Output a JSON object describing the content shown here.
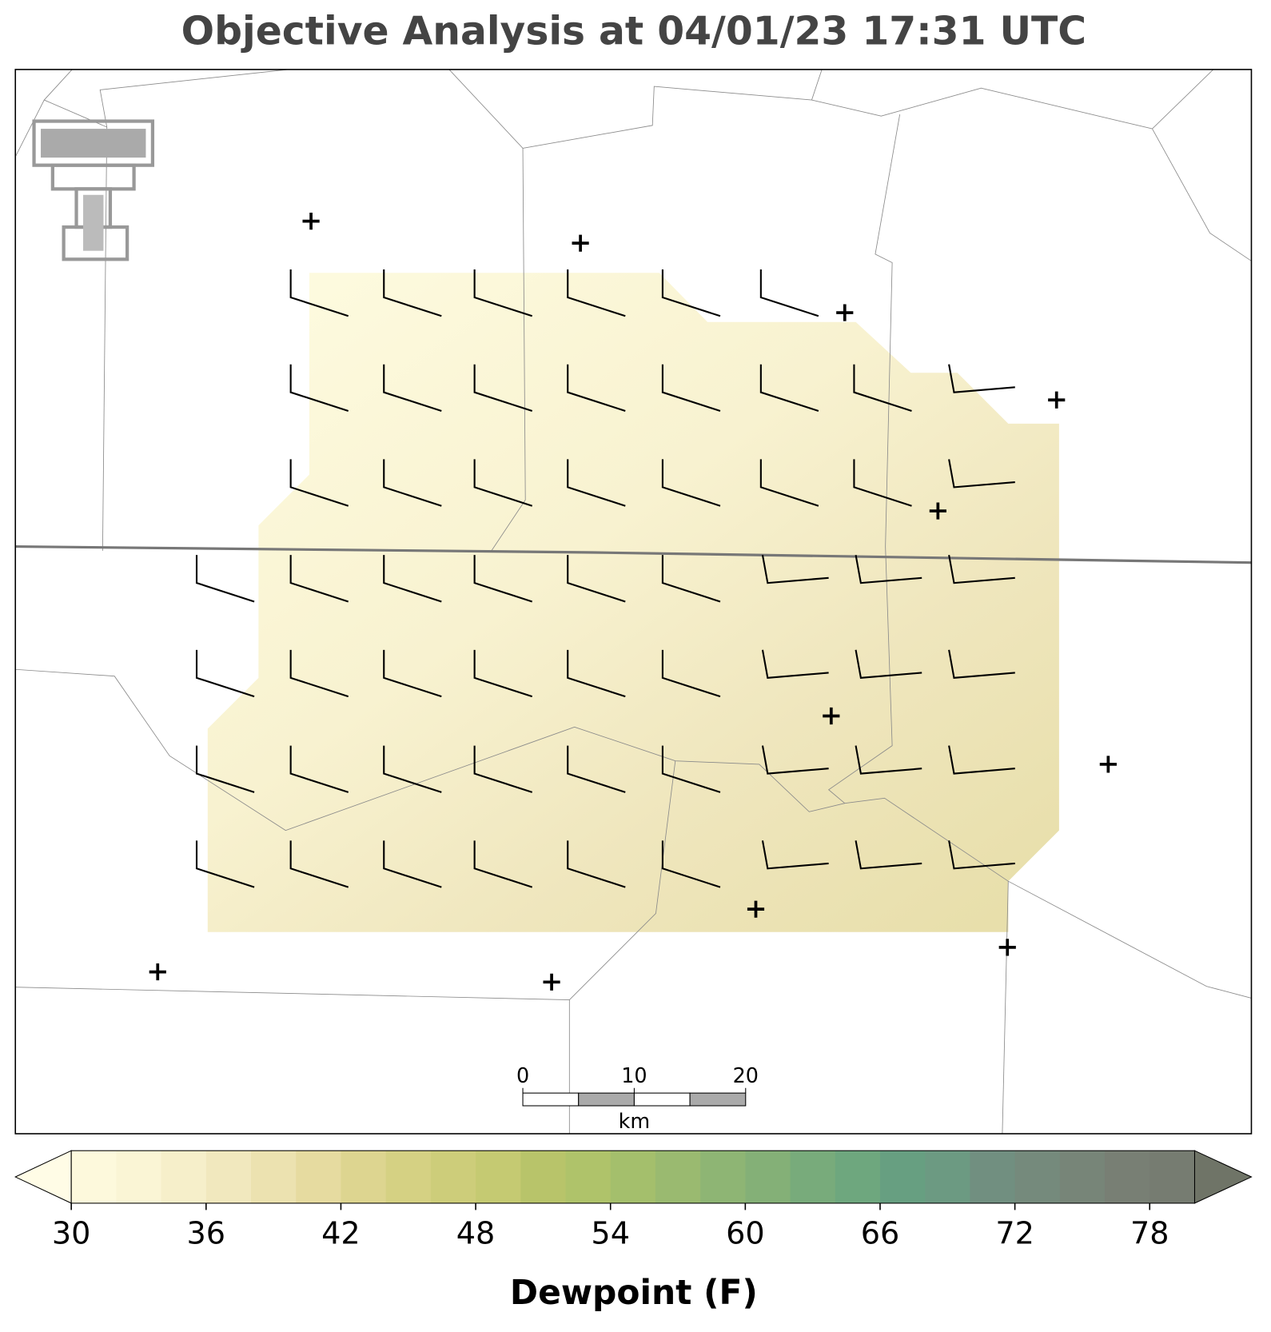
{
  "title": "Objective Analysis at 04/01/23 17:31 UTC",
  "colorbar": {
    "label": "Dewpoint (F)",
    "lim": [
      30,
      80
    ],
    "ticks": [
      30,
      36,
      42,
      48,
      54,
      60,
      66,
      72,
      78
    ],
    "colors": [
      "#fdf9dc",
      "#faf5d5",
      "#f6efca",
      "#f1e8be",
      "#ece2b0",
      "#e6dba0",
      "#ddd590",
      "#d5d183",
      "#cdcd7a",
      "#c5ca72",
      "#b8c46a",
      "#afc36a",
      "#a4bf6c",
      "#9aba70",
      "#8eb574",
      "#84b077",
      "#78ab7b",
      "#6ea77e",
      "#679f81",
      "#6c9a82",
      "#718f80",
      "#758a7c",
      "#778578",
      "#787f74",
      "#767c71"
    ],
    "under_color": "#fffce6",
    "over_color": "#6f7467"
  },
  "scale_bar": {
    "ticks": [
      0,
      10,
      20
    ],
    "unit": "km"
  }
}
